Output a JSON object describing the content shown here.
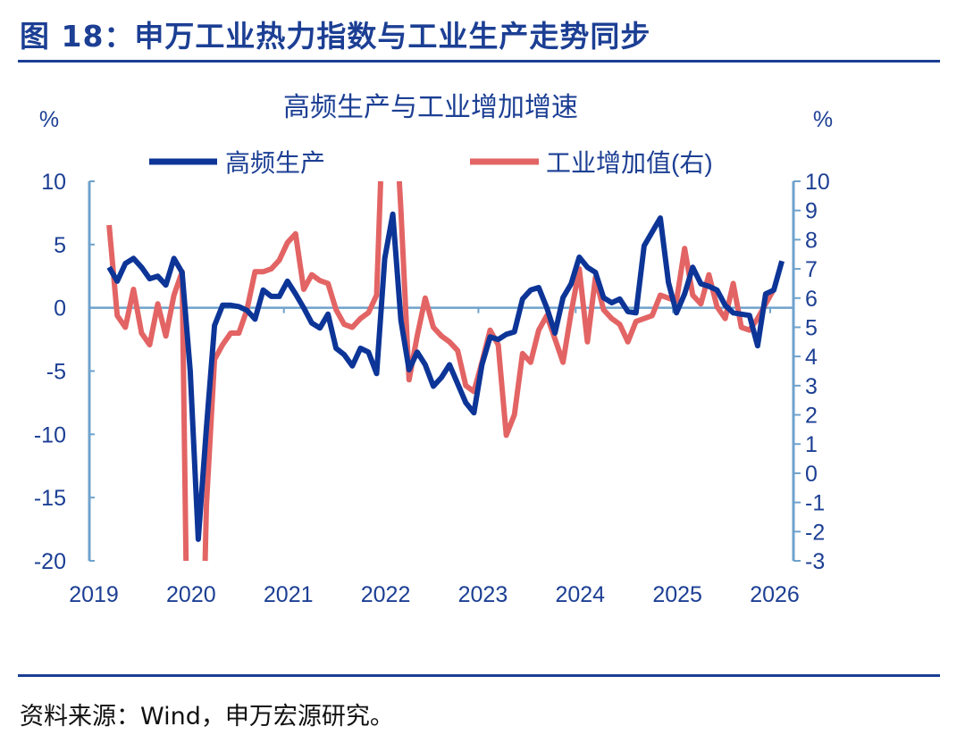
{
  "figure": {
    "title": "图 18：申万工业热力指数与工业生产走势同步",
    "source": "资料来源：Wind，申万宏源研究。"
  },
  "chart_data": {
    "type": "line",
    "title": "高频生产与工业增加增速",
    "ylabel_left": "%",
    "ylabel_right": "%",
    "ylim_left": [
      -20,
      10
    ],
    "ylim_right": [
      -3,
      10
    ],
    "yticks_left": [
      "10",
      "5",
      "0",
      "-5",
      "-10",
      "-15",
      "-20"
    ],
    "yticks_right": [
      "10",
      "9",
      "8",
      "7",
      "6",
      "5",
      "4",
      "3",
      "2",
      "1",
      "0",
      "-1",
      "-2",
      "-3"
    ],
    "xticks": [
      "2019",
      "2020",
      "2021",
      "2022",
      "2023",
      "2024",
      "2025",
      "2026"
    ],
    "legend_position": "top",
    "grid": false,
    "x": [
      "2019-03",
      "2019-04",
      "2019-05",
      "2019-06",
      "2019-07",
      "2019-08",
      "2019-09",
      "2019-10",
      "2019-11",
      "2019-12",
      "2020-01",
      "2020-02",
      "2020-03",
      "2020-04",
      "2020-05",
      "2020-06",
      "2020-07",
      "2020-08",
      "2020-09",
      "2020-10",
      "2020-11",
      "2020-12",
      "2021-01",
      "2021-02",
      "2021-03",
      "2021-04",
      "2021-05",
      "2021-06",
      "2021-07",
      "2021-08",
      "2021-09",
      "2021-10",
      "2021-11",
      "2021-12",
      "2022-01",
      "2022-02",
      "2022-03",
      "2022-04",
      "2022-05",
      "2022-06",
      "2022-07",
      "2022-08",
      "2022-09",
      "2022-10",
      "2022-11",
      "2022-12",
      "2023-01",
      "2023-02",
      "2023-03",
      "2023-04",
      "2023-05",
      "2023-06",
      "2023-07",
      "2023-08",
      "2023-09",
      "2023-10",
      "2023-11",
      "2023-12",
      "2024-01",
      "2024-02",
      "2024-03",
      "2024-04",
      "2024-05",
      "2024-06",
      "2024-07",
      "2024-08",
      "2024-09",
      "2024-10",
      "2024-11",
      "2024-12",
      "2025-01",
      "2025-02",
      "2025-03",
      "2025-04",
      "2025-05",
      "2025-06",
      "2025-07",
      "2025-08",
      "2025-09",
      "2025-10",
      "2025-11",
      "2025-12",
      "2026-01",
      "2026-02"
    ],
    "series": [
      {
        "name": "高频生产",
        "axis": "left",
        "color": "#0d3597",
        "values": [
          3.2,
          2.1,
          3.5,
          3.9,
          3.2,
          2.3,
          2.5,
          1.8,
          3.9,
          2.8,
          -5.0,
          -18.3,
          -9.5,
          -1.4,
          0.2,
          0.2,
          0.1,
          -0.2,
          -0.9,
          1.4,
          0.9,
          0.9,
          2.1,
          1.1,
          0.0,
          -1.2,
          -1.6,
          -0.5,
          -3.2,
          -3.7,
          -4.6,
          -3.2,
          -3.5,
          -5.2,
          3.9,
          7.4,
          -1.0,
          -4.9,
          -3.5,
          -4.5,
          -6.2,
          -5.5,
          -4.5,
          -6.0,
          -7.5,
          -8.3,
          -4.5,
          -2.3,
          -2.5,
          -2.1,
          -1.9,
          0.7,
          1.4,
          1.6,
          0.0,
          -2.0,
          0.8,
          1.9,
          4.0,
          3.2,
          2.8,
          0.8,
          0.4,
          0.7,
          -0.3,
          -0.4,
          4.9,
          6.0,
          7.1,
          2.0,
          -0.4,
          1.1,
          3.2,
          1.9,
          1.7,
          1.4,
          0.2,
          -0.4,
          -0.5,
          -0.6,
          -3.0,
          1.1,
          1.4,
          3.7
        ]
      },
      {
        "name": "工业增加值(右)",
        "axis": "right",
        "color": "#e36464",
        "values": [
          8.5,
          5.4,
          5.0,
          6.3,
          4.8,
          4.4,
          5.8,
          4.7,
          6.1,
          6.9,
          -13.5,
          -13.5,
          -1.1,
          3.9,
          4.4,
          4.8,
          4.8,
          5.6,
          6.9,
          6.9,
          7.0,
          7.3,
          7.9,
          8.2,
          6.3,
          6.8,
          6.6,
          6.5,
          5.6,
          5.1,
          5.0,
          5.3,
          5.5,
          6.1,
          14.0,
          14.0,
          9.0,
          3.2,
          4.7,
          6.0,
          5.0,
          4.7,
          4.5,
          4.2,
          3.0,
          2.8,
          3.8,
          4.9,
          4.4,
          1.3,
          2.0,
          4.1,
          3.8,
          4.9,
          5.4,
          4.6,
          3.8,
          5.5,
          7.0,
          4.5,
          6.7,
          5.6,
          5.3,
          5.1,
          4.5,
          5.2,
          5.3,
          5.4,
          6.1,
          6.0,
          5.9,
          7.7,
          6.1,
          5.8,
          6.8,
          5.7,
          5.3,
          6.5,
          5.0,
          4.9,
          5.3,
          5.8,
          6.3,
          null
        ]
      }
    ]
  }
}
